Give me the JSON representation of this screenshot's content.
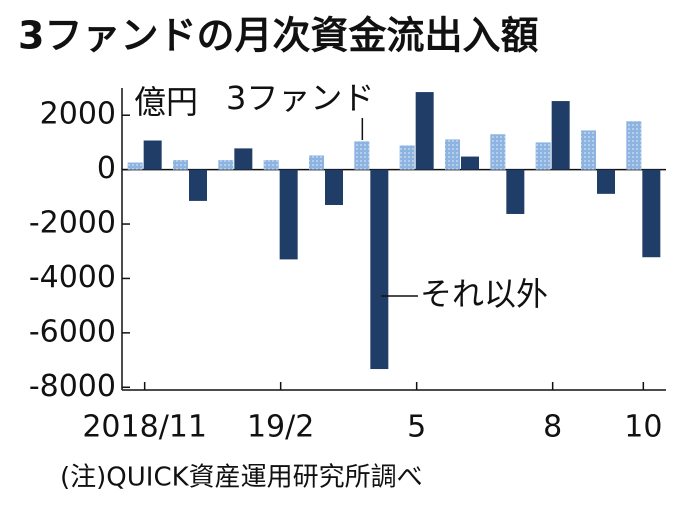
{
  "chart_data": {
    "type": "bar",
    "title": "3ファンドの月次資金流出入額",
    "y_label": "億円",
    "source": "(注)QUICK資産運用研究所調べ",
    "categories": [
      "2018/11",
      null,
      null,
      "19/2",
      null,
      null,
      "5",
      null,
      null,
      "8",
      null,
      "10"
    ],
    "series": [
      {
        "name": "3ファンド",
        "color": "#8db3e0",
        "values": [
          260,
          350,
          350,
          350,
          520,
          1040,
          890,
          1110,
          1300,
          1000,
          1440,
          1780
        ]
      },
      {
        "name": "それ以外",
        "color": "#1f3d66",
        "values": [
          1070,
          -1150,
          780,
          -3300,
          -1300,
          -7330,
          2850,
          480,
          -1630,
          2520,
          -890,
          -3220
        ]
      }
    ],
    "ylim": [
      -8100,
      3000
    ],
    "yticks": [
      2000,
      0,
      -2000,
      -4000,
      -6000,
      -8000
    ],
    "grid": false
  }
}
